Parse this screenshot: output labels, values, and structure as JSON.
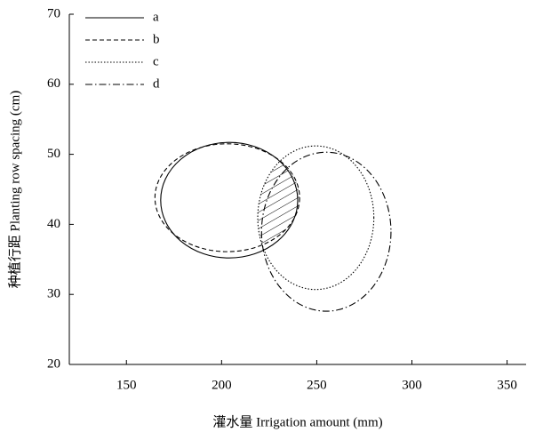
{
  "chart_data": {
    "type": "ellipse",
    "xlabel": "灌水量 Irrigation amount (mm)",
    "ylabel": "种植行距 Planting row spacing (cm)",
    "xlim": [
      120,
      360
    ],
    "xticks": [
      150,
      200,
      250,
      300,
      350
    ],
    "ylim": [
      20,
      70
    ],
    "yticks": [
      20,
      30,
      40,
      50,
      60,
      70
    ],
    "legend": "upper left",
    "series": [
      {
        "name": "a",
        "color": "#000000",
        "linestyle": "solid",
        "x": [
          168,
          240
        ],
        "values": [
          35.2,
          51.7
        ]
      },
      {
        "name": "b",
        "color": "#000000",
        "linestyle": "dashed",
        "x": [
          165,
          241
        ],
        "values": [
          36.1,
          51.5
        ]
      },
      {
        "name": "c",
        "color": "#000000",
        "linestyle": "dotted",
        "x": [
          219,
          280
        ],
        "values": [
          30.7,
          51.2
        ]
      },
      {
        "name": "d",
        "color": "#000000",
        "linestyle": "dashdot",
        "x": [
          221,
          289
        ],
        "values": [
          27.6,
          50.3
        ]
      }
    ]
  }
}
